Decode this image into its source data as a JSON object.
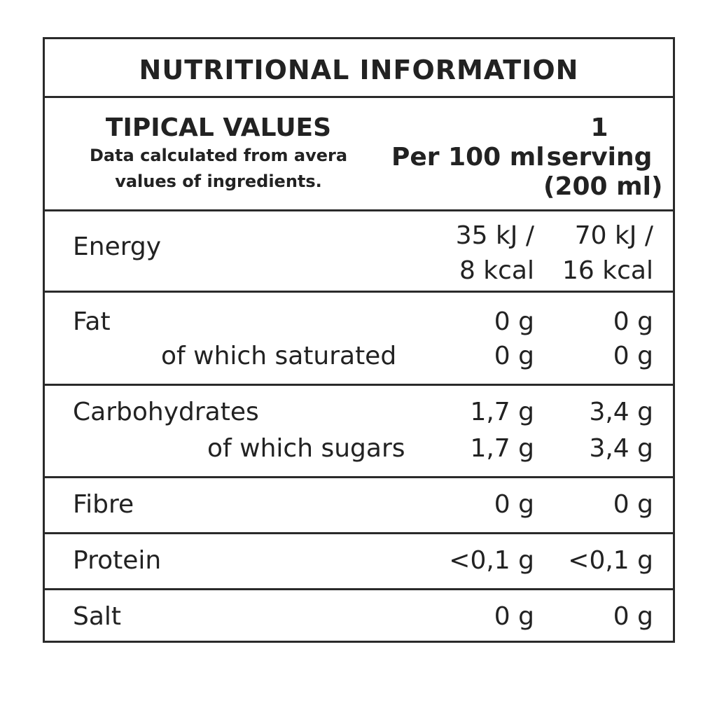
{
  "title": "NUTRITIONAL INFORMATION",
  "header": {
    "typical_values": "TIPICAL VALUES",
    "note_line1": "Data calculated from avera",
    "note_line2": "values of ingredients.",
    "per_100": "Per 100 ml",
    "serving_line1": "1",
    "serving_line2": "serving",
    "serving_line3": "(200 ml)"
  },
  "rows": {
    "energy": {
      "label": "Energy",
      "per100_line1": "35 kJ /",
      "per100_line2": "8 kcal",
      "serving_line1": "70 kJ /",
      "serving_line2": "16 kcal"
    },
    "fat": {
      "label": "Fat",
      "per100": "0 g",
      "serving": "0 g",
      "sub_label": "of which saturated",
      "sub_per100": "0 g",
      "sub_serving": "0 g"
    },
    "carbohydrates": {
      "label": "Carbohydrates",
      "per100": "1,7 g",
      "serving": "3,4 g",
      "sub_label": "of which sugars",
      "sub_per100": "1,7 g",
      "sub_serving": "3,4 g"
    },
    "fibre": {
      "label": "Fibre",
      "per100": "0 g",
      "serving": "0 g"
    },
    "protein": {
      "label": "Protein",
      "per100": "<0,1 g",
      "serving": "<0,1 g"
    },
    "salt": {
      "label": "Salt",
      "per100": "0 g",
      "serving": "0 g"
    }
  }
}
